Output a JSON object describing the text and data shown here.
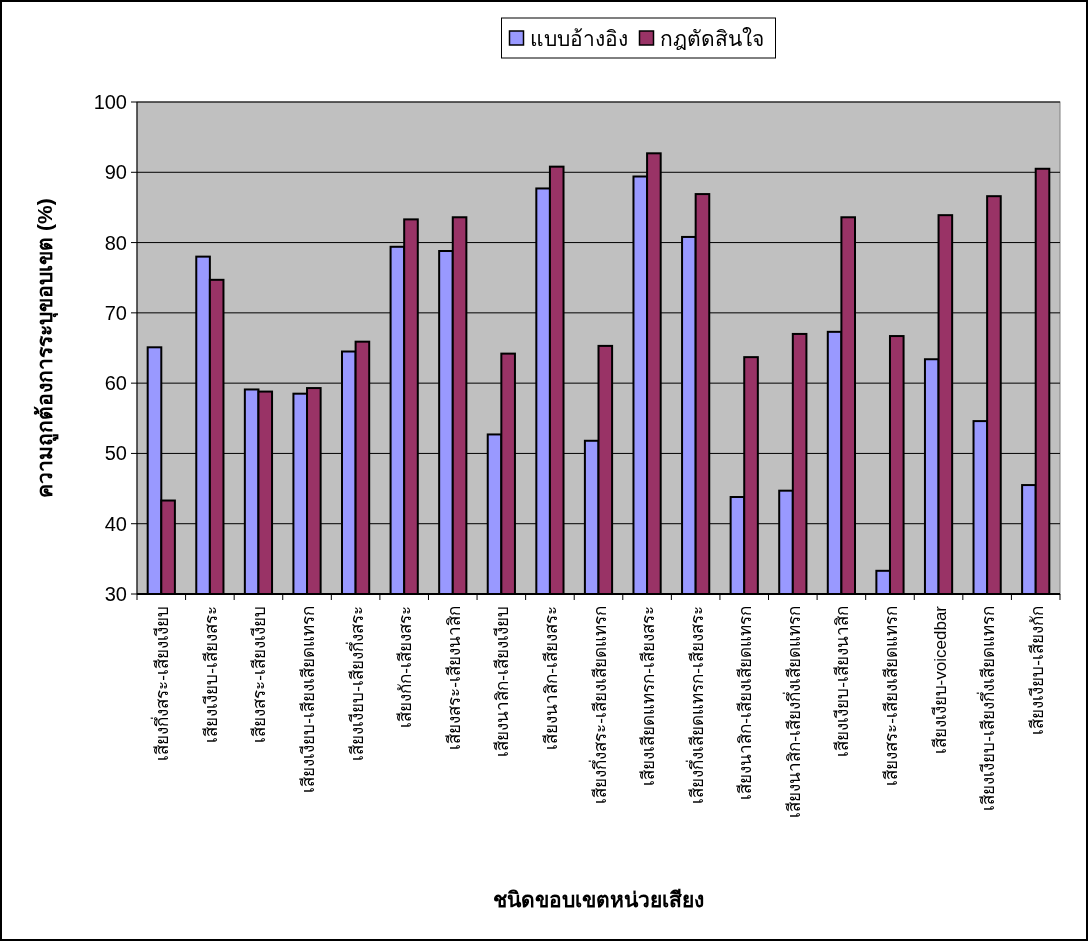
{
  "chart_data": {
    "type": "bar",
    "xlabel": "ชนิดขอบเขตหน่วยเสียง",
    "ylabel": "ความถูกต้องการระบุขอบเขต (%)",
    "categories": [
      "เสียงกึ่งสระ-เสียงเงียบ",
      "เสียงเงียบ-เสียงสระ",
      "เสียงสระ-เสียงเงียบ",
      "เสียงเงียบ-เสียงเสียดแทรก",
      "เสียงเงียบ-เสียงกึ่งสระ",
      "เสียงกัก-เสียงสระ",
      "เสียงสระ-เสียงนาสิก",
      "เสียงนาสิก-เสียงเงียบ",
      "เสียงนาสิก-เสียงสระ",
      "เสียงกึ่งสระ-เสียงเสียดแทรก",
      "เสียงเสียดแทรก-เสียงสระ",
      "เสียงกึ่งเสียดแทรก-เสียงสระ",
      "เสียงนาสิก-เสียงเสียดแทรก",
      "เสียงนาสิก-เสียงกึ่งเสียดแทรก",
      "เสียงเงียบ-เสียงนาสิก",
      "เสียงสระ-เสียงเสียดแทรก",
      "เสียงเงียบ-voicedbar",
      "เสียงเงียบ-เสียงกึ่งเสียดแทรก",
      "เสียงเงียบ-เสียงกัก"
    ],
    "series": [
      {
        "name": "แบบอ้างอิง",
        "color": "#9999ff",
        "values": [
          65.1,
          78.0,
          59.1,
          58.5,
          64.5,
          79.4,
          78.8,
          52.7,
          87.7,
          51.8,
          89.4,
          80.8,
          43.8,
          44.7,
          67.3,
          33.3,
          63.4,
          54.6,
          45.5
        ]
      },
      {
        "name": "กฎตัดสินใจ",
        "color": "#993366",
        "values": [
          43.3,
          74.7,
          58.8,
          59.3,
          65.9,
          83.3,
          83.6,
          64.2,
          90.8,
          65.3,
          92.7,
          86.9,
          63.7,
          67.0,
          83.6,
          66.7,
          83.9,
          86.6,
          90.5
        ]
      }
    ],
    "ylim": [
      30,
      100
    ],
    "yticks": [
      30,
      40,
      50,
      60,
      70,
      80,
      90,
      100
    ],
    "grid": "y",
    "legend": "top"
  }
}
